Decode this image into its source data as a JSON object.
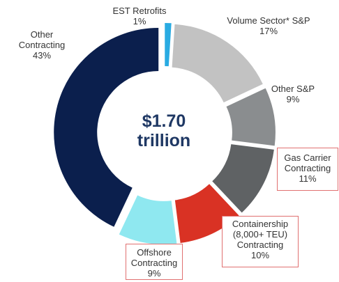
{
  "chart_data": {
    "type": "donut",
    "center_label": [
      "$1.70",
      "trillion"
    ],
    "categories": [
      "EST Retrofits",
      "Volume Sector* S&P",
      "Other S&P",
      "Gas Carrier Contracting",
      "Containership (8,000+ TEU) Contracting",
      "Offshore Contracting",
      "Other Contracting"
    ],
    "values": [
      1,
      17,
      9,
      11,
      10,
      9,
      43
    ],
    "value_labels": [
      "1%",
      "17%",
      "9%",
      "11%",
      "10%",
      "9%",
      "43%"
    ],
    "colors": [
      "#29abe2",
      "#c2c2c2",
      "#8a8d8f",
      "#5f6264",
      "#d93224",
      "#8fe8f0",
      "#0b1f4d"
    ],
    "highlighted": [
      false,
      false,
      false,
      true,
      true,
      true,
      false
    ],
    "highlight_color": "#e07070"
  }
}
